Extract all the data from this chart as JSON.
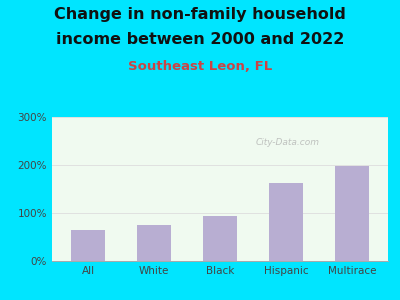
{
  "title_line1": "Change in non-family household",
  "title_line2": "income between 2000 and 2022",
  "subtitle": "Southeast Leon, FL",
  "categories": [
    "All",
    "White",
    "Black",
    "Hispanic",
    "Multirace"
  ],
  "values": [
    65,
    75,
    93,
    163,
    198
  ],
  "bar_color": "#b8aed2",
  "ylim": [
    0,
    300
  ],
  "yticks": [
    0,
    100,
    200,
    300
  ],
  "ytick_labels": [
    "0%",
    "100%",
    "200%",
    "300%"
  ],
  "background_outer": "#00e5ff",
  "background_chart_top": "#f0faf0",
  "background_chart_bottom": "#ffffff",
  "title_fontsize": 11.5,
  "subtitle_fontsize": 9.5,
  "subtitle_color": "#cc4444",
  "title_color": "#111111",
  "tick_label_color": "#444444",
  "watermark_text": "City-Data.com",
  "grid_color": "#dddddd"
}
